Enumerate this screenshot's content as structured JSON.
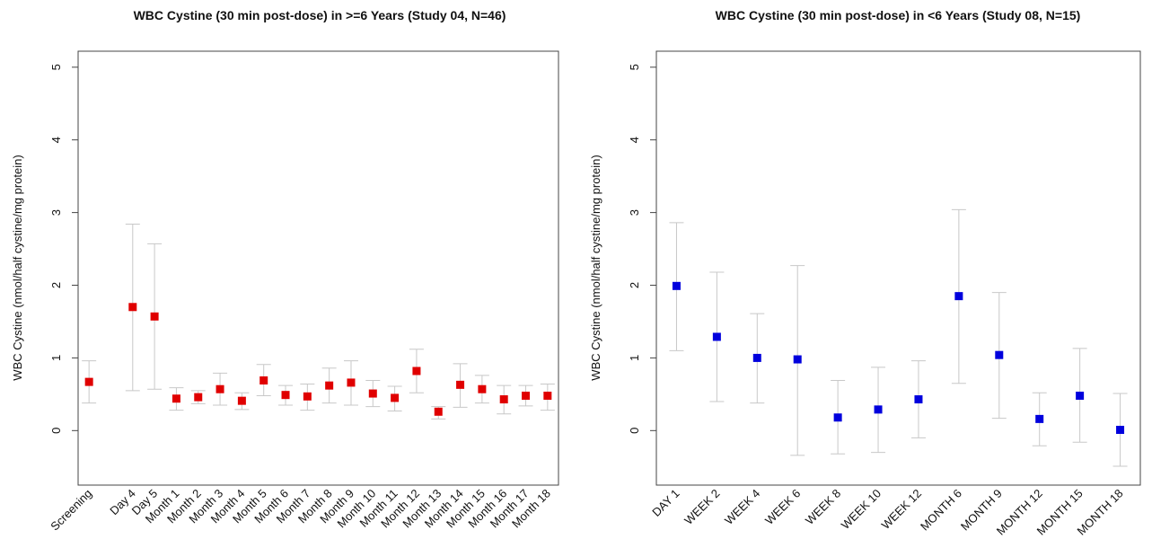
{
  "chart_data": [
    {
      "type": "errorbar",
      "title": "WBC Cystine (30 min post-dose) in >=6 Years (Study 04, N=46)",
      "y_label": "WBC Cystine (nmol/half cystine/mg protein)",
      "categories": [
        "Screening",
        null,
        "Day 4",
        "Day 5",
        "Month 1",
        "Month 2",
        "Month 3",
        "Month 4",
        "Month 5",
        "Month 6",
        "Month 7",
        "Month 8",
        "Month 9",
        "Month 10",
        "Month 11",
        "Month 12",
        "Month 13",
        "Month 14",
        "Month 15",
        "Month 16",
        "Month 17",
        "Month 18"
      ],
      "values": [
        0.67,
        null,
        1.7,
        1.57,
        0.44,
        0.46,
        0.57,
        0.41,
        0.69,
        0.49,
        0.47,
        0.62,
        0.66,
        0.51,
        0.45,
        0.82,
        0.26,
        0.63,
        0.57,
        0.43,
        0.48,
        0.48
      ],
      "lower": [
        0.38,
        null,
        0.55,
        0.57,
        0.28,
        0.37,
        0.35,
        0.29,
        0.48,
        0.35,
        0.28,
        0.38,
        0.35,
        0.33,
        0.27,
        0.52,
        0.16,
        0.32,
        0.38,
        0.23,
        0.34,
        0.28
      ],
      "upper": [
        0.96,
        null,
        2.84,
        2.57,
        0.59,
        0.55,
        0.79,
        0.52,
        0.91,
        0.62,
        0.64,
        0.86,
        0.96,
        0.69,
        0.61,
        1.12,
        0.33,
        0.92,
        0.76,
        0.62,
        0.62,
        0.64
      ],
      "color": "#e00000",
      "ylim": [
        -0.75,
        5.22
      ],
      "yticks": [
        0,
        1,
        2,
        3,
        4,
        5
      ]
    },
    {
      "type": "errorbar",
      "title": "WBC Cystine (30 min post-dose) in <6 Years (Study 08, N=15)",
      "y_label": "WBC Cystine (nmol/half cystine/mg protein)",
      "categories": [
        "DAY 1",
        "WEEK 2",
        "WEEK 4",
        "WEEK 6",
        "WEEK 8",
        "WEEK 10",
        "WEEK 12",
        "MONTH 6",
        "MONTH 9",
        "MONTH 12",
        "MONTH 15",
        "MONTH 18"
      ],
      "values": [
        1.99,
        1.29,
        1.0,
        0.98,
        0.18,
        0.29,
        0.43,
        1.85,
        1.04,
        0.16,
        0.48,
        0.01
      ],
      "lower": [
        1.1,
        0.4,
        0.38,
        -0.34,
        -0.32,
        -0.3,
        -0.1,
        0.65,
        0.17,
        -0.21,
        -0.16,
        -0.49
      ],
      "upper": [
        2.86,
        2.18,
        1.61,
        2.27,
        0.69,
        0.87,
        0.96,
        3.04,
        1.9,
        0.52,
        1.13,
        0.51
      ],
      "color": "#0000dd",
      "ylim": [
        -0.75,
        5.22
      ],
      "yticks": [
        0,
        1,
        2,
        3,
        4,
        5
      ]
    }
  ]
}
